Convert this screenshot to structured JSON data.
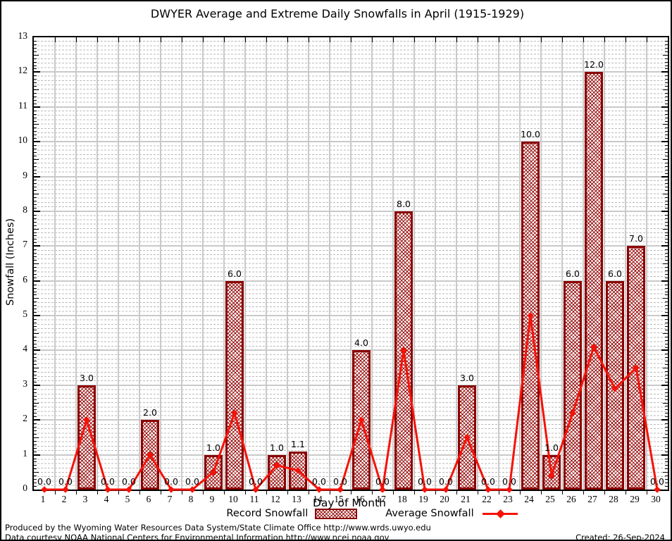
{
  "title": "DWYER Average and Extreme Daily Snowfalls in April (1915-1929)",
  "axes": {
    "y_label": "Snowfall (Inches)",
    "x_label": "Day of Month",
    "y_tick_labels": [
      "0",
      "1",
      "2",
      "3",
      "4",
      "5",
      "6",
      "7",
      "8",
      "9",
      "10",
      "11",
      "12",
      "13"
    ],
    "x_tick_labels": [
      "1",
      "2",
      "3",
      "4",
      "5",
      "6",
      "7",
      "8",
      "9",
      "10",
      "11",
      "12",
      "13",
      "14",
      "15",
      "16",
      "17",
      "18",
      "19",
      "20",
      "21",
      "22",
      "23",
      "24",
      "25",
      "26",
      "27",
      "28",
      "29",
      "30"
    ]
  },
  "legend": {
    "record_label": "Record Snowfall",
    "average_label": "Average Snowfall"
  },
  "footer": {
    "line1": "Produced by the Wyoming Water Resources Data System/State Climate Office http://www.wrds.uwyo.edu",
    "line2": "Data courtesy NOAA National Centers for Environmental Information http://www.ncei.noaa.gov",
    "created": "Created: 26-Sep-2024"
  },
  "colors": {
    "bar_border": "#8b0000",
    "bar_hatch": "#940808",
    "average_line": "#f51208",
    "grid_major": "#c9c9c9",
    "grid_minor": "#b9b9b9",
    "axis": "#000000"
  },
  "chart_data": {
    "type": "bar",
    "title": "DWYER Average and Extreme Daily Snowfalls in April (1915-1929)",
    "xlabel": "Day of Month",
    "ylabel": "Snowfall (Inches)",
    "ylim": [
      0,
      13
    ],
    "x": [
      1,
      2,
      3,
      4,
      5,
      6,
      7,
      8,
      9,
      10,
      11,
      12,
      13,
      14,
      15,
      16,
      17,
      18,
      19,
      20,
      21,
      22,
      23,
      24,
      25,
      26,
      27,
      28,
      29,
      30
    ],
    "grid": true,
    "legend_position": "bottom",
    "series": [
      {
        "name": "Record Snowfall",
        "type": "bar",
        "values": [
          0,
          0,
          3,
          0,
          0,
          2,
          0,
          0,
          1,
          6,
          0,
          1,
          1.1,
          0,
          0,
          4,
          0,
          8,
          0,
          0,
          3,
          0,
          0,
          10,
          1,
          6,
          12,
          6,
          7,
          0
        ],
        "labels": [
          "0.0",
          "0.0",
          "3.0",
          "0.0",
          "0.0",
          "2.0",
          "0.0",
          "0.0",
          "1.0",
          "6.0",
          "0.0",
          "1.0",
          "1.1",
          "0.0",
          "0.0",
          "4.0",
          "0.0",
          "8.0",
          "0.0",
          "0.0",
          "3.0",
          "0.0",
          "0.0",
          "10.0",
          "1.0",
          "6.0",
          "12.0",
          "6.0",
          "7.0",
          "0.0"
        ]
      },
      {
        "name": "Average Snowfall",
        "type": "line",
        "values": [
          0,
          0,
          2,
          0,
          0,
          1,
          0,
          0,
          0.5,
          2.2,
          0,
          0.7,
          0.55,
          0,
          0,
          2,
          0,
          4,
          0,
          0,
          1.5,
          0,
          0,
          5,
          0.4,
          2.2,
          4.1,
          2.9,
          3.5,
          0
        ]
      }
    ]
  }
}
